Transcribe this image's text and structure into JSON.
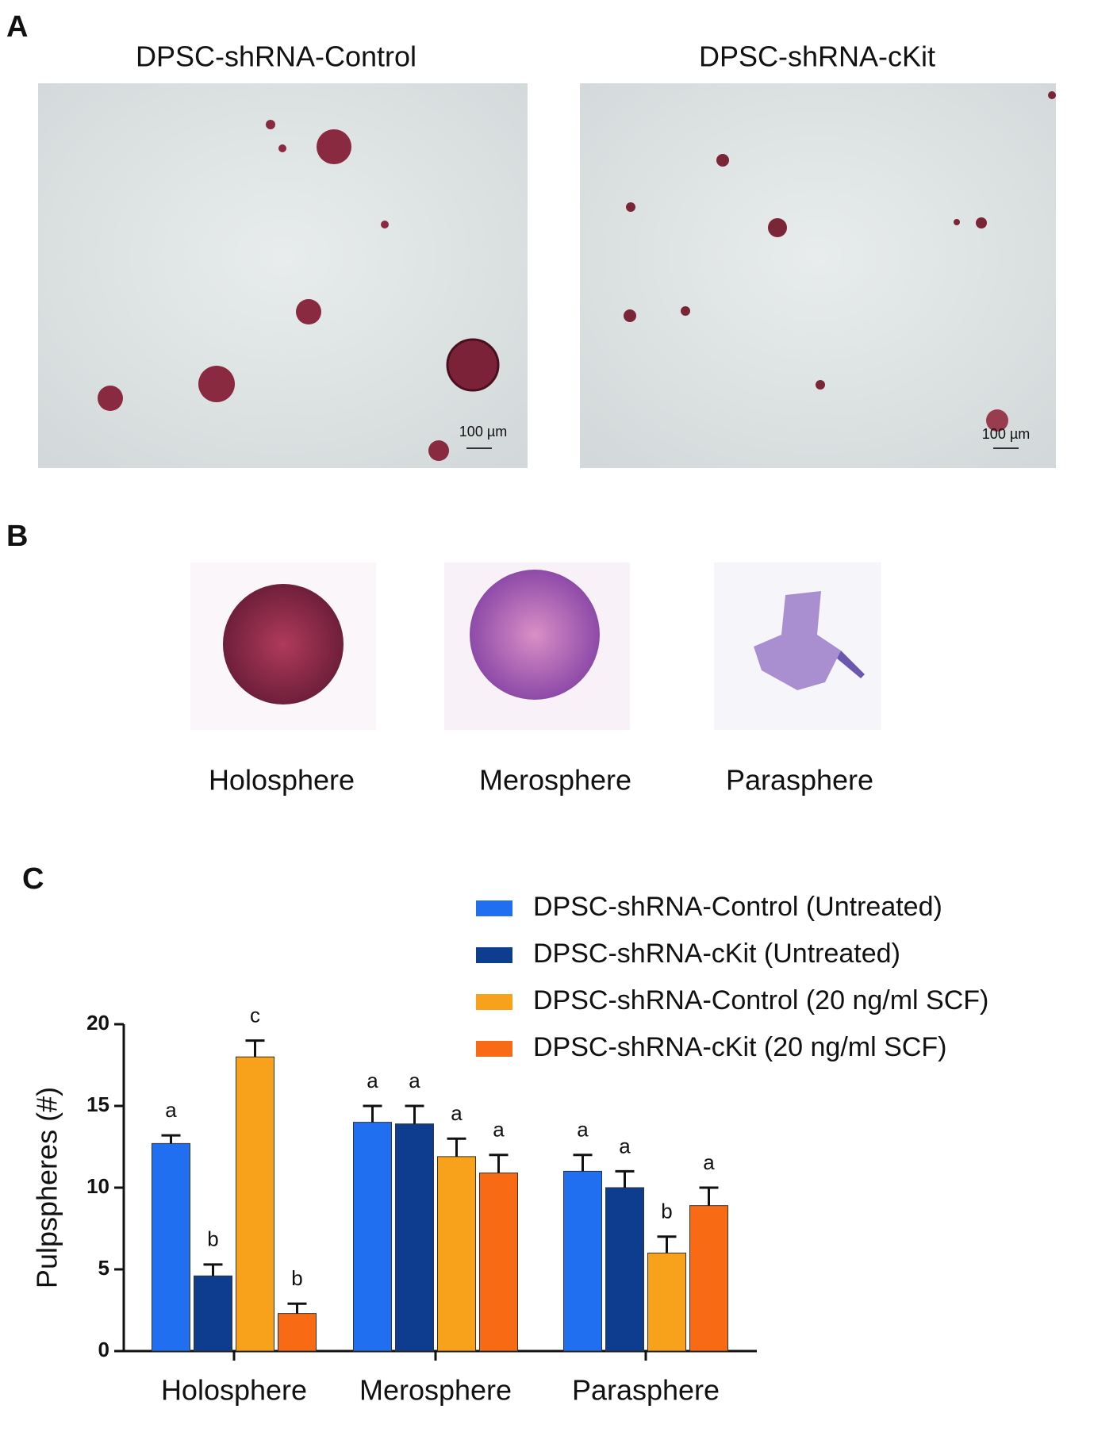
{
  "panels": {
    "a": {
      "letter": "A",
      "left_title": "DPSC-shRNA-Control",
      "right_title": "DPSC-shRNA-cKit",
      "left_scale": "100 µm",
      "right_scale": "100 µm"
    },
    "b": {
      "letter": "B",
      "labels": [
        "Holosphere",
        "Merosphere",
        "Parasphere"
      ]
    },
    "c": {
      "letter": "C"
    }
  },
  "chart_data": {
    "type": "bar",
    "ylabel": "Pulpspheres (#)",
    "categories": [
      "Holosphere",
      "Merosphere",
      "Parasphere"
    ],
    "series": [
      {
        "name": "DPSC-shRNA-Control (Untreated)",
        "color": "#1f6ff0",
        "values": [
          12.7,
          14,
          11
        ],
        "errors": [
          0.5,
          1.0,
          1.0
        ],
        "letters": [
          "a",
          "a",
          "a"
        ]
      },
      {
        "name": "DPSC-shRNA-cKit (Untreated)",
        "color": "#0e3c8e",
        "values": [
          4.6,
          13.9,
          10
        ],
        "errors": [
          0.7,
          1.1,
          1.0
        ],
        "letters": [
          "b",
          "a",
          "a"
        ]
      },
      {
        "name": "DPSC-shRNA-Control (20 ng/ml SCF)",
        "color": "#f8a21c",
        "values": [
          18,
          11.9,
          6
        ],
        "errors": [
          1.0,
          1.1,
          1.0
        ],
        "letters": [
          "c",
          "a",
          "b"
        ]
      },
      {
        "name": "DPSC-shRNA-cKit (20 ng/ml SCF)",
        "color": "#f86b14",
        "values": [
          2.3,
          10.9,
          8.9
        ],
        "errors": [
          0.6,
          1.1,
          1.1
        ],
        "letters": [
          "b",
          "a",
          "a"
        ]
      }
    ],
    "ylim": [
      0,
      20
    ],
    "yticks": [
      0,
      5,
      10,
      15,
      20
    ]
  }
}
